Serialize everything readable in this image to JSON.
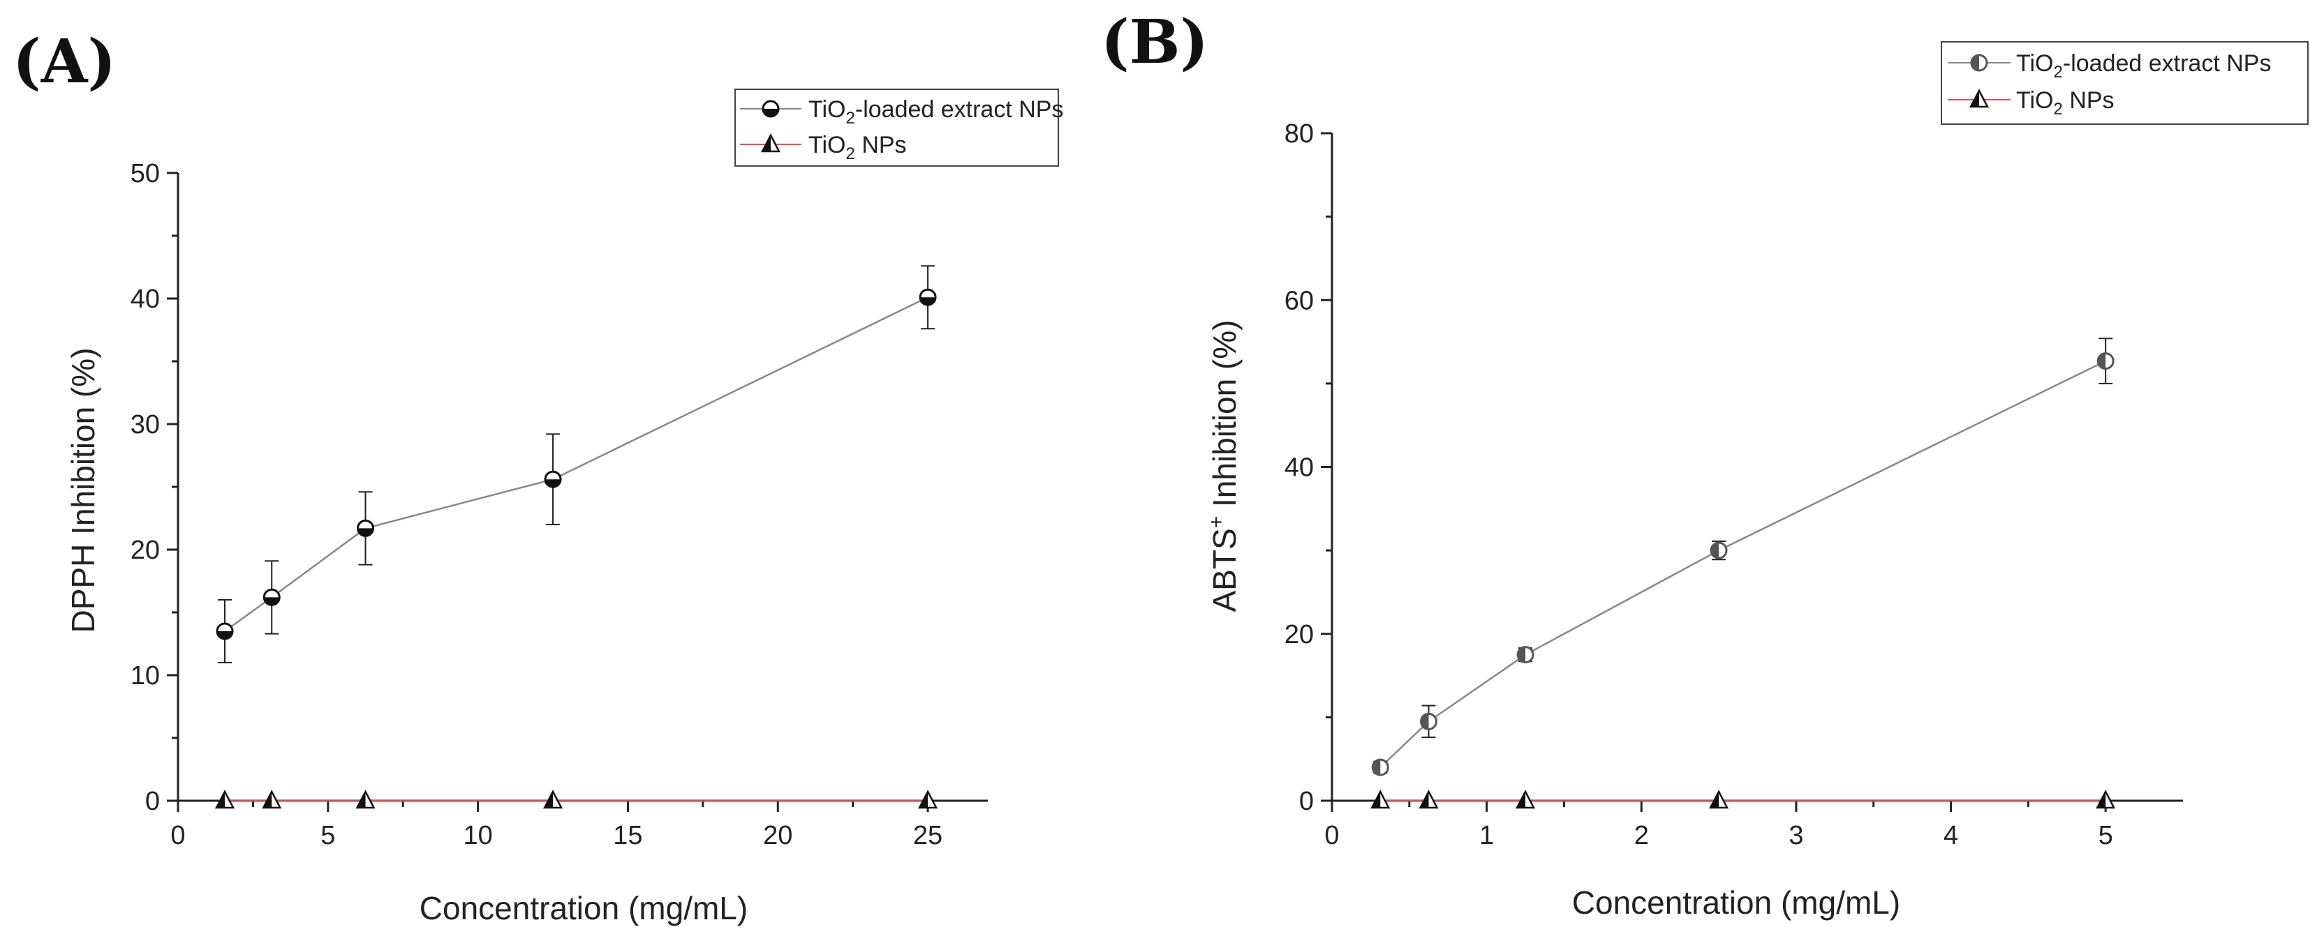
{
  "chart_data": [
    {
      "panel_label": "(A)",
      "type": "line",
      "xlabel": "Concentration (mg/mL)",
      "ylabel": "DPPH Inhibition (%)",
      "xlim": [
        0,
        27
      ],
      "ylim": [
        0,
        50
      ],
      "xticks": [
        0,
        5,
        10,
        15,
        20,
        25
      ],
      "yticks": [
        0,
        10,
        20,
        30,
        40,
        50
      ],
      "legend_position": "top-right",
      "series": [
        {
          "name": "TiO2-loaded extract NPs",
          "label_main": "TiO",
          "label_sub": "2",
          "label_rest": "-loaded extract NPs",
          "marker": "circle-half-bottom",
          "line_color": "#888888",
          "x": [
            1.56,
            3.125,
            6.25,
            12.5,
            25
          ],
          "values": [
            13.5,
            16.2,
            21.7,
            25.6,
            40.1
          ],
          "errors": [
            2.5,
            2.9,
            2.9,
            3.6,
            2.5
          ]
        },
        {
          "name": "TiO2 NPs",
          "label_main": "TiO",
          "label_sub": "2",
          "label_rest": " NPs",
          "marker": "triangle-half",
          "line_color": "#e05050",
          "x": [
            1.56,
            3.125,
            6.25,
            12.5,
            25
          ],
          "values": [
            0,
            0,
            0,
            0,
            0
          ],
          "errors": [
            0,
            0,
            0,
            0,
            0
          ]
        }
      ]
    },
    {
      "panel_label": "(B)",
      "type": "line",
      "xlabel": "Concentration (mg/mL)",
      "ylabel_main": "ABTS",
      "ylabel_sup": "+",
      "ylabel_rest": " Inhibition (%)",
      "ylabel": "ABTS+ Inhibition (%)",
      "xlim": [
        0,
        5.5
      ],
      "ylim": [
        0,
        80
      ],
      "xticks": [
        0,
        1,
        2,
        3,
        4,
        5
      ],
      "yticks": [
        0,
        20,
        40,
        60,
        80
      ],
      "legend_position": "top-right",
      "series": [
        {
          "name": "TiO2-loaded extract NPs",
          "label_main": "TiO",
          "label_sub": "2",
          "label_rest": "-loaded extract NPs",
          "marker": "circle-half-left",
          "line_color": "#888888",
          "x": [
            0.3125,
            0.625,
            1.25,
            2.5,
            5
          ],
          "values": [
            4.0,
            9.5,
            17.5,
            30.0,
            52.7
          ],
          "errors": [
            0.7,
            1.9,
            0.8,
            1.1,
            2.7
          ]
        },
        {
          "name": "TiO2 NPs",
          "label_main": "TiO",
          "label_sub": "2",
          "label_rest": " NPs",
          "marker": "triangle-half",
          "line_color": "#e05050",
          "x": [
            0.3125,
            0.625,
            1.25,
            2.5,
            5
          ],
          "values": [
            0,
            0,
            0,
            0,
            0
          ],
          "errors": [
            0,
            0,
            0,
            0,
            0
          ]
        }
      ]
    }
  ]
}
